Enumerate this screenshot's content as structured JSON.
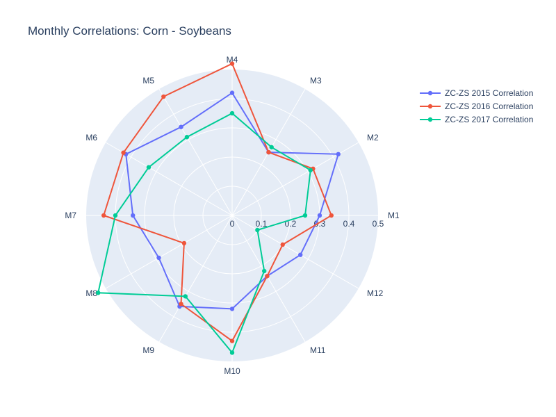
{
  "chart_data": {
    "type": "radar",
    "title": "Monthly Correlations: Corn - Soybeans",
    "categories": [
      "M1",
      "M2",
      "M3",
      "M4",
      "M5",
      "M6",
      "M7",
      "M8",
      "M9",
      "M10",
      "M11",
      "M12"
    ],
    "radial_ticks": [
      "0",
      "0.1",
      "0.2",
      "0.3",
      "0.4",
      "0.5"
    ],
    "radial_range": [
      0,
      0.5
    ],
    "legend_position": "top-right",
    "grid": true,
    "series": [
      {
        "name": "ZC-ZS 2015 Correlation",
        "color": "#636efa",
        "values": [
          0.3,
          0.42,
          0.25,
          0.42,
          0.35,
          0.42,
          0.34,
          0.29,
          0.36,
          0.32,
          0.24,
          0.27
        ]
      },
      {
        "name": "ZC-ZS 2016 Correlation",
        "color": "#ef553b",
        "values": [
          0.34,
          0.32,
          0.25,
          0.52,
          0.47,
          0.43,
          0.44,
          0.19,
          0.35,
          0.43,
          0.24,
          0.2
        ]
      },
      {
        "name": "ZC-ZS 2017 Correlation",
        "color": "#00cc96",
        "values": [
          0.25,
          0.31,
          0.27,
          0.35,
          0.31,
          0.33,
          0.4,
          0.53,
          0.32,
          0.47,
          0.22,
          0.1
        ]
      }
    ]
  }
}
